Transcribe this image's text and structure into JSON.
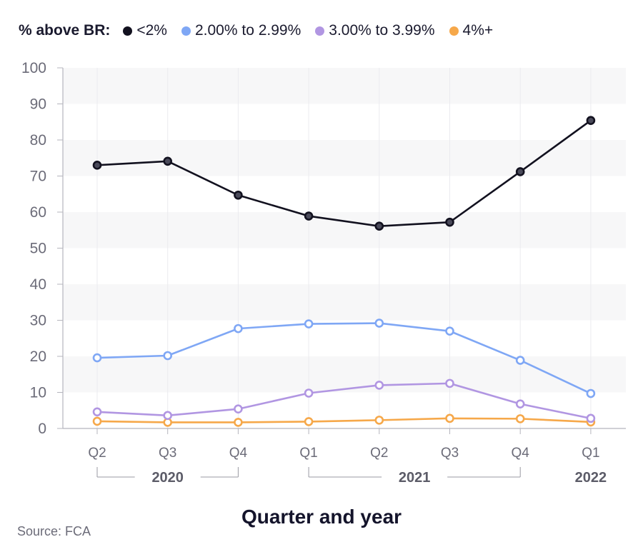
{
  "legend": {
    "title": "% above BR:"
  },
  "chart_data": {
    "type": "line",
    "categories": [
      "Q2",
      "Q3",
      "Q4",
      "Q1",
      "Q2",
      "Q3",
      "Q4",
      "Q1"
    ],
    "year_groups": [
      {
        "label": "2020",
        "from": 0,
        "to": 2
      },
      {
        "label": "2021",
        "from": 3,
        "to": 6
      },
      {
        "label": "2022",
        "from": 7,
        "to": 7
      }
    ],
    "series": [
      {
        "name": "<2%",
        "color": "#12111f",
        "values": [
          73.0,
          74.1,
          64.7,
          58.9,
          56.1,
          57.2,
          71.2,
          85.4
        ]
      },
      {
        "name": "2.00% to 2.99%",
        "color": "#7fa7f5",
        "values": [
          19.6,
          20.2,
          27.7,
          29.0,
          29.2,
          27.0,
          18.9,
          9.7
        ]
      },
      {
        "name": "3.00% to 3.99%",
        "color": "#b196e2",
        "values": [
          4.6,
          3.6,
          5.4,
          9.8,
          12.0,
          12.5,
          6.8,
          2.8
        ]
      },
      {
        "name": "4%+",
        "color": "#f6a84a",
        "values": [
          2.0,
          1.7,
          1.7,
          1.9,
          2.3,
          2.8,
          2.7,
          1.8
        ]
      }
    ],
    "yticks": [
      0,
      10,
      20,
      30,
      40,
      50,
      60,
      70,
      80,
      90,
      100
    ],
    "ylim": [
      0,
      100
    ],
    "xlabel": "Quarter and year",
    "ylabel": "",
    "grid": true,
    "legend_position": "top-left"
  },
  "footer": {
    "source": "Source: FCA"
  }
}
